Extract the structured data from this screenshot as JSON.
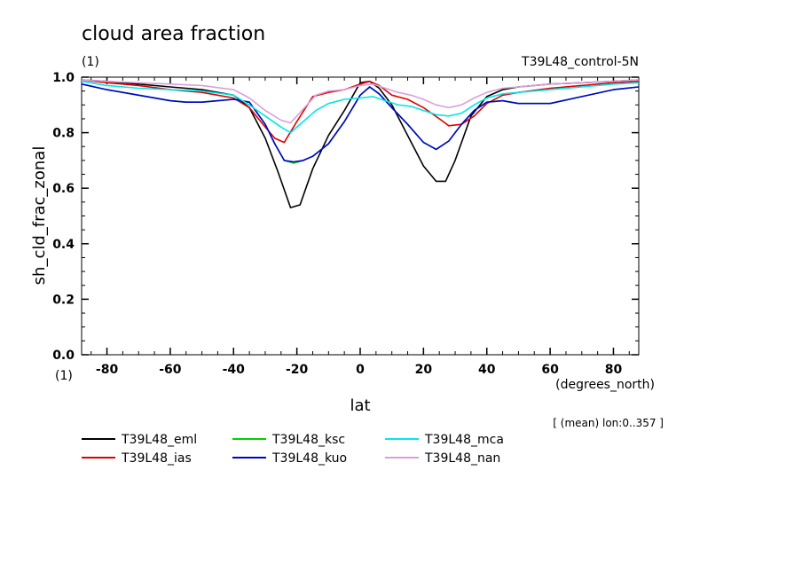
{
  "chart_data": {
    "type": "line",
    "title": "cloud area fraction",
    "subtitle": "(1)",
    "run_label": "T39L48_control-5N",
    "xlabel": "lat",
    "xunits": "(degrees_north)",
    "ylabel": "sh_cld_frac_zonal",
    "yunits": "(1)",
    "note": "[ (mean) lon:0..357 ]",
    "xlim": [
      -88,
      88
    ],
    "ylim": [
      0,
      1
    ],
    "xticks": [
      -80,
      -60,
      -40,
      -20,
      0,
      20,
      40,
      60,
      80
    ],
    "xtick_labels": [
      "-80",
      "-60",
      "-40",
      "-20",
      "0",
      "20",
      "40",
      "60",
      "80"
    ],
    "yticks": [
      0,
      0.2,
      0.4,
      0.6,
      0.8,
      1.0
    ],
    "ytick_labels": [
      "0.0",
      "0.2",
      "0.4",
      "0.6",
      "0.8",
      "1.0"
    ],
    "legend_position": "bottom",
    "series": [
      {
        "name": "T39L48_eml",
        "color": "#000000",
        "x": [
          -88,
          -80,
          -70,
          -60,
          -50,
          -40,
          -35,
          -30,
          -26,
          -22,
          -19,
          -15,
          -10,
          -5,
          0,
          3,
          6,
          10,
          15,
          20,
          24,
          27,
          30,
          35,
          40,
          45,
          50,
          60,
          70,
          80,
          88
        ],
        "y": [
          0.99,
          0.985,
          0.975,
          0.965,
          0.955,
          0.935,
          0.89,
          0.78,
          0.66,
          0.53,
          0.54,
          0.67,
          0.79,
          0.88,
          0.98,
          0.985,
          0.96,
          0.9,
          0.79,
          0.68,
          0.625,
          0.625,
          0.7,
          0.86,
          0.93,
          0.955,
          0.965,
          0.975,
          0.98,
          0.985,
          0.99
        ]
      },
      {
        "name": "T39L48_ias",
        "color": "#e00000",
        "x": [
          -88,
          -80,
          -70,
          -60,
          -50,
          -40,
          -35,
          -30,
          -27,
          -24,
          -20,
          -15,
          -10,
          -5,
          0,
          3,
          6,
          10,
          15,
          20,
          25,
          28,
          32,
          36,
          40,
          45,
          50,
          60,
          70,
          80,
          88
        ],
        "y": [
          0.99,
          0.98,
          0.97,
          0.955,
          0.945,
          0.925,
          0.89,
          0.82,
          0.78,
          0.765,
          0.84,
          0.93,
          0.945,
          0.955,
          0.975,
          0.985,
          0.97,
          0.935,
          0.92,
          0.89,
          0.85,
          0.825,
          0.83,
          0.86,
          0.905,
          0.935,
          0.945,
          0.96,
          0.97,
          0.98,
          0.985
        ]
      },
      {
        "name": "T39L48_ksc",
        "color": "#00d000",
        "x": [
          -88,
          -80,
          -70,
          -60,
          -55,
          -50,
          -45,
          -40,
          -35,
          -30,
          -27,
          -24,
          -21,
          -18,
          -15,
          -10,
          -5,
          0,
          3,
          6,
          10,
          15,
          20,
          24,
          28,
          32,
          36,
          40,
          45,
          50,
          55,
          60,
          70,
          80,
          88
        ],
        "y": [
          0.975,
          0.955,
          0.935,
          0.915,
          0.91,
          0.91,
          0.915,
          0.92,
          0.91,
          0.83,
          0.76,
          0.7,
          0.69,
          0.7,
          0.715,
          0.76,
          0.84,
          0.935,
          0.965,
          0.94,
          0.89,
          0.83,
          0.765,
          0.74,
          0.77,
          0.83,
          0.88,
          0.91,
          0.915,
          0.905,
          0.905,
          0.905,
          0.93,
          0.955,
          0.965
        ]
      },
      {
        "name": "T39L48_kuo",
        "color": "#0000d0",
        "x": [
          -88,
          -80,
          -70,
          -60,
          -55,
          -50,
          -45,
          -40,
          -35,
          -30,
          -27,
          -24,
          -21,
          -18,
          -15,
          -10,
          -5,
          0,
          3,
          6,
          10,
          15,
          20,
          24,
          28,
          32,
          36,
          40,
          45,
          50,
          55,
          60,
          70,
          80,
          88
        ],
        "y": [
          0.975,
          0.955,
          0.935,
          0.915,
          0.91,
          0.91,
          0.915,
          0.92,
          0.91,
          0.83,
          0.76,
          0.7,
          0.695,
          0.7,
          0.715,
          0.76,
          0.84,
          0.935,
          0.965,
          0.94,
          0.89,
          0.83,
          0.765,
          0.74,
          0.77,
          0.83,
          0.88,
          0.91,
          0.915,
          0.905,
          0.905,
          0.905,
          0.93,
          0.955,
          0.965
        ]
      },
      {
        "name": "T39L48_mca",
        "color": "#00e8e8",
        "x": [
          -88,
          -80,
          -70,
          -60,
          -50,
          -40,
          -35,
          -30,
          -25,
          -22,
          -18,
          -14,
          -10,
          -5,
          0,
          4,
          8,
          12,
          16,
          20,
          24,
          28,
          32,
          36,
          40,
          45,
          50,
          60,
          70,
          80,
          88
        ],
        "y": [
          0.985,
          0.97,
          0.96,
          0.955,
          0.95,
          0.935,
          0.9,
          0.86,
          0.82,
          0.8,
          0.84,
          0.88,
          0.905,
          0.92,
          0.925,
          0.93,
          0.915,
          0.9,
          0.895,
          0.88,
          0.865,
          0.86,
          0.87,
          0.9,
          0.925,
          0.94,
          0.945,
          0.955,
          0.965,
          0.975,
          0.98
        ]
      },
      {
        "name": "T39L48_nan",
        "color": "#d8a0d8",
        "x": [
          -88,
          -80,
          -70,
          -60,
          -50,
          -40,
          -35,
          -30,
          -25,
          -22,
          -18,
          -14,
          -10,
          -5,
          0,
          4,
          8,
          12,
          16,
          20,
          24,
          28,
          32,
          36,
          40,
          45,
          50,
          60,
          70,
          80,
          88
        ],
        "y": [
          0.99,
          0.985,
          0.98,
          0.975,
          0.97,
          0.955,
          0.925,
          0.88,
          0.845,
          0.835,
          0.885,
          0.935,
          0.95,
          0.955,
          0.97,
          0.975,
          0.96,
          0.945,
          0.935,
          0.92,
          0.9,
          0.89,
          0.9,
          0.925,
          0.945,
          0.96,
          0.965,
          0.975,
          0.98,
          0.985,
          0.99
        ]
      }
    ]
  }
}
